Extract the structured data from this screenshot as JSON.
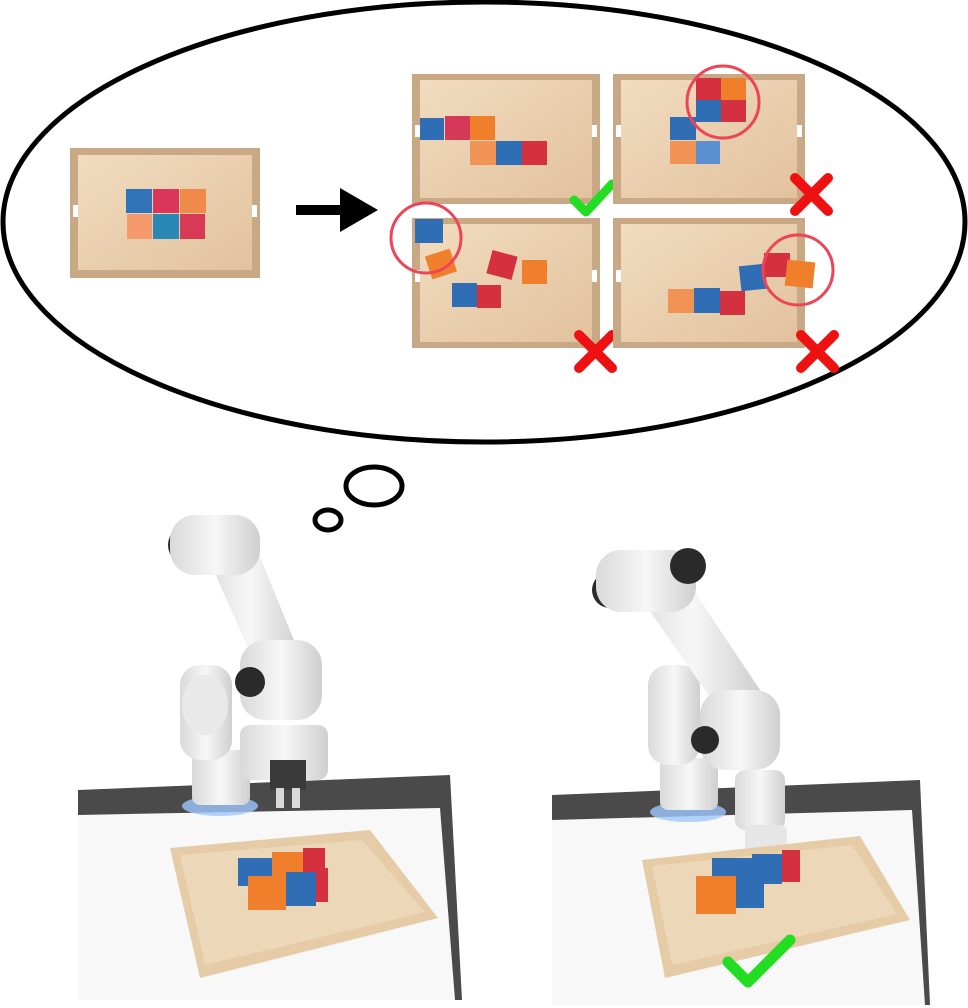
{
  "figure": {
    "thought_bubble": {
      "initial_state": {
        "tray": "tray",
        "blocks": [
          {
            "color": "#2f73b8"
          },
          {
            "color": "#d9365a"
          },
          {
            "color": "#f08a4b"
          },
          {
            "color": "#f49a6d"
          },
          {
            "color": "#2a88b6"
          },
          {
            "color": "#d83a56"
          }
        ]
      },
      "arrow": "arrow-right",
      "outcomes": [
        {
          "result": "success",
          "mark": "checkmark-icon",
          "mark_color": "#22dd22"
        },
        {
          "result": "failure",
          "mark": "cross-icon",
          "mark_color": "#ee1111",
          "circled": true
        },
        {
          "result": "failure",
          "mark": "cross-icon",
          "mark_color": "#ee1111",
          "circled": true
        },
        {
          "result": "failure",
          "mark": "cross-icon",
          "mark_color": "#ee1111",
          "circled": true
        }
      ]
    },
    "robots": [
      {
        "state": "planning",
        "thinking": true
      },
      {
        "state": "executed",
        "mark": "checkmark-icon",
        "mark_color": "#22dd22"
      }
    ],
    "colors": {
      "block_blue": "#2f6db5",
      "block_red": "#d43040",
      "block_orange": "#ef7f2a",
      "wood": "#e9cfae",
      "tray_edge": "#d8b892",
      "robot_white": "#f2f2f2",
      "robot_dark": "#2a2a2a",
      "check_green": "#22dd22",
      "cross_red": "#ee1111",
      "circle_red": "#ee4455"
    }
  }
}
